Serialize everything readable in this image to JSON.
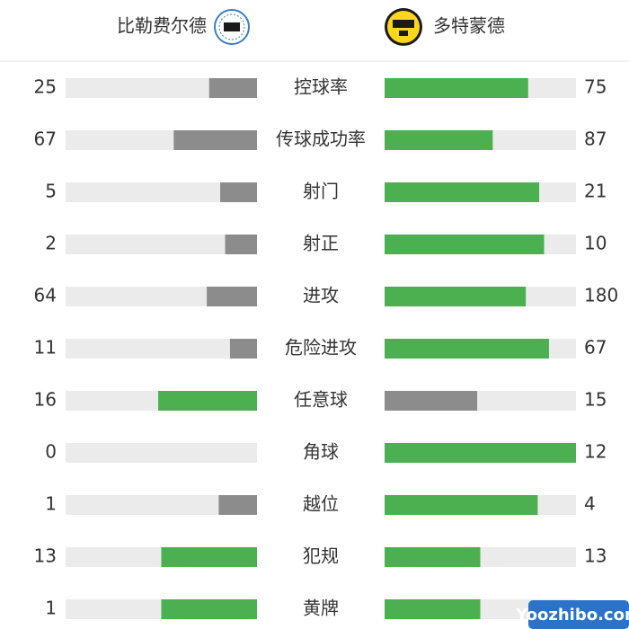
{
  "chart_data": {
    "type": "bar",
    "categories": [
      "控球率",
      "传球成功率",
      "射门",
      "射正",
      "进攻",
      "危险进攻",
      "任意球",
      "角球",
      "越位",
      "犯规",
      "黄牌"
    ],
    "series": [
      {
        "name": "比勒费尔德",
        "values": [
          25,
          67,
          5,
          2,
          64,
          11,
          16,
          0,
          1,
          13,
          1
        ]
      },
      {
        "name": "多特蒙德",
        "values": [
          75,
          87,
          21,
          10,
          180,
          67,
          15,
          12,
          4,
          13,
          1
        ]
      }
    ],
    "colors": {
      "higher": "#4caf50",
      "lower": "#8c8c8c",
      "track": "#ebebeb"
    },
    "watermark": "Yoozhibo.com"
  }
}
